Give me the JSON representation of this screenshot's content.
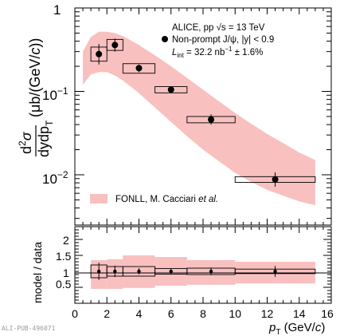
{
  "chart_data": [
    {
      "type": "scatter",
      "panel": "top",
      "xlabel": "p_T (GeV/c)",
      "ylabel": "d²σ/dy dp_T (μb/(GeV/c))",
      "ylabel_parts": {
        "num": "d",
        "num_sup": "2",
        "num_rest": "σ",
        "den": "dydp",
        "den_sub": "T",
        "unit": "(μb/(GeV/",
        "unit_c": "c",
        "unit_end": "))"
      },
      "xlim": [
        0,
        16
      ],
      "ylim": [
        0.004,
        1
      ],
      "yscale": "log",
      "y_ticks": [
        {
          "value": 0.01,
          "base": "10",
          "exp": "−2"
        },
        {
          "value": 0.1,
          "base": "10",
          "exp": "−1"
        },
        {
          "value": 1,
          "base": "1",
          "exp": ""
        }
      ],
      "annotations": {
        "line1": "ALICE, pp √s = 13 TeV",
        "line2": "Non-prompt J/ψ, |y| < 0.9",
        "line3_L": "L",
        "line3_sub": "int",
        "line3_val": " = 32.2 nb",
        "line3_sup": "−1",
        "line3_end": " ± 1.6%"
      },
      "legend": {
        "label": "FONLL, M. Cacciari ",
        "label_italic": "et al.",
        "position": "bottom-left",
        "color": "#f9c0c0"
      },
      "series": [
        {
          "name": "Non-prompt J/ψ, |y| < 0.9",
          "points": [
            {
              "x": 1.5,
              "xlow": 1,
              "xhigh": 2,
              "y": 0.28,
              "ystat_lo": 0.21,
              "ystat_hi": 0.37,
              "ysys_lo": 0.23,
              "ysys_hi": 0.34
            },
            {
              "x": 2.5,
              "xlow": 2,
              "xhigh": 3,
              "y": 0.36,
              "ystat_lo": 0.3,
              "ystat_hi": 0.43,
              "ysys_lo": 0.31,
              "ysys_hi": 0.42
            },
            {
              "x": 4,
              "xlow": 3,
              "xhigh": 5,
              "y": 0.19,
              "ystat_lo": 0.17,
              "ystat_hi": 0.21,
              "ysys_lo": 0.165,
              "ysys_hi": 0.215
            },
            {
              "x": 6,
              "xlow": 5,
              "xhigh": 7,
              "y": 0.105,
              "ystat_lo": 0.097,
              "ystat_hi": 0.113,
              "ysys_lo": 0.096,
              "ysys_hi": 0.114
            },
            {
              "x": 8.5,
              "xlow": 7,
              "xhigh": 10,
              "y": 0.046,
              "ystat_lo": 0.04,
              "ystat_hi": 0.053,
              "ysys_lo": 0.042,
              "ysys_hi": 0.05
            },
            {
              "x": 12.5,
              "xlow": 10,
              "xhigh": 15,
              "y": 0.0088,
              "ystat_lo": 0.0072,
              "ystat_hi": 0.0107,
              "ysys_lo": 0.0081,
              "ysys_hi": 0.0095
            }
          ]
        }
      ],
      "band": {
        "name": "FONLL, M. Cacciari et al.",
        "color": "#f9c0c0",
        "x": [
          0.5,
          1.0,
          1.5,
          2.0,
          2.5,
          3.0,
          4.0,
          5.0,
          6.0,
          7.0,
          8.0,
          9.0,
          10.0,
          11.0,
          12.0,
          13.0,
          14.0,
          15.0
        ],
        "low": [
          0.12,
          0.16,
          0.17,
          0.17,
          0.155,
          0.135,
          0.095,
          0.064,
          0.043,
          0.029,
          0.02,
          0.0145,
          0.0105,
          0.0082,
          0.0066,
          0.0056,
          0.0048,
          0.0043
        ],
        "high": [
          0.3,
          0.45,
          0.52,
          0.52,
          0.5,
          0.46,
          0.36,
          0.27,
          0.2,
          0.145,
          0.105,
          0.076,
          0.055,
          0.041,
          0.031,
          0.024,
          0.0185,
          0.015
        ]
      }
    },
    {
      "type": "scatter",
      "panel": "bottom",
      "xlabel": "p_T (GeV/c)",
      "xlabel_parts": {
        "p": "p",
        "sub": "T",
        "unit": " (GeV/",
        "c": "c",
        "end": ")"
      },
      "ylabel": "model / data",
      "xlim": [
        0,
        16
      ],
      "ylim": [
        0,
        2.4
      ],
      "x_ticks": [
        "0",
        "2",
        "4",
        "6",
        "8",
        "10",
        "12",
        "14",
        "16"
      ],
      "y_ticks": [
        "0.5",
        "1",
        "1.5",
        "2"
      ],
      "series": [
        {
          "name": "ratio",
          "points": [
            {
              "x": 1.5,
              "xlow": 1,
              "xhigh": 2,
              "y": 1.0,
              "ystat": 0.27,
              "ysys": 0.2,
              "band_lo": 0.45,
              "band_hi": 1.35
            },
            {
              "x": 2.5,
              "xlow": 2,
              "xhigh": 3,
              "y": 1.0,
              "ystat": 0.18,
              "ysys": 0.15,
              "band_lo": 0.45,
              "band_hi": 1.38
            },
            {
              "x": 4,
              "xlow": 3,
              "xhigh": 5,
              "y": 1.0,
              "ystat": 0.1,
              "ysys": 0.15,
              "band_lo": 0.48,
              "band_hi": 1.5
            },
            {
              "x": 6,
              "xlow": 5,
              "xhigh": 7,
              "y": 1.0,
              "ystat": 0.08,
              "ysys": 0.09,
              "band_lo": 0.55,
              "band_hi": 1.45
            },
            {
              "x": 8.5,
              "xlow": 7,
              "xhigh": 10,
              "y": 1.0,
              "ystat": 0.12,
              "ysys": 0.1,
              "band_lo": 0.58,
              "band_hi": 1.35
            },
            {
              "x": 12.5,
              "xlow": 10,
              "xhigh": 15,
              "y": 1.0,
              "ystat": 0.17,
              "ysys": 0.07,
              "band_lo": 0.62,
              "band_hi": 1.3
            }
          ]
        }
      ]
    }
  ],
  "watermark": "ALI-PUB-496071"
}
